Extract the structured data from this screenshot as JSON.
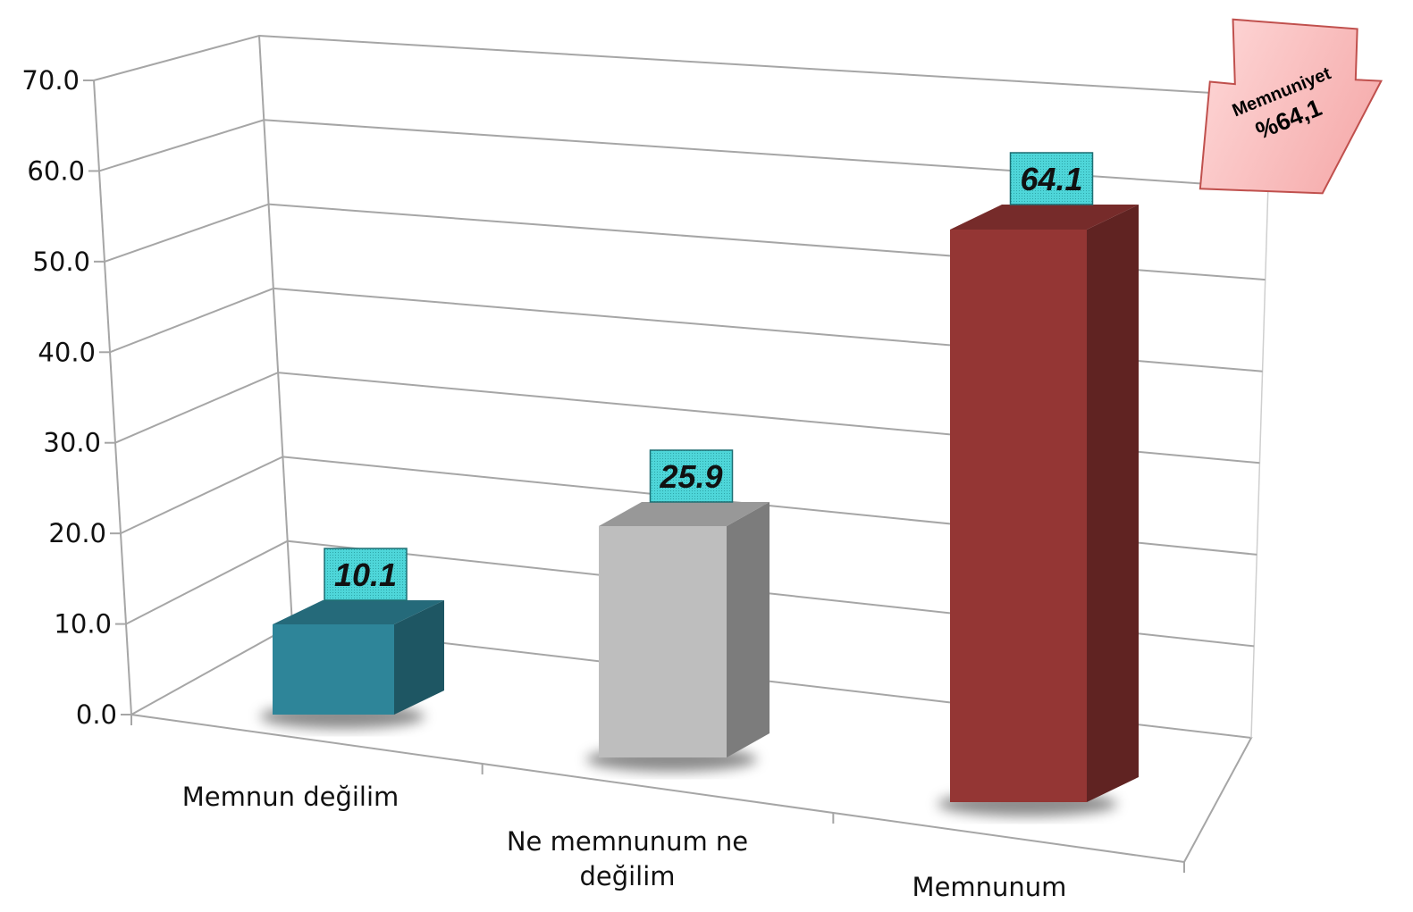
{
  "chart_data": {
    "type": "bar",
    "categories": [
      "Memnun değilim",
      "Ne memnunum ne değilim",
      "Memnunum"
    ],
    "category_lines": [
      [
        "Memnun değilim"
      ],
      [
        "Ne memnunum ne",
        "değilim"
      ],
      [
        "Memnunum"
      ]
    ],
    "values": [
      10.1,
      25.9,
      64.1
    ],
    "value_labels": [
      "10.1",
      "25.9",
      "64.1"
    ],
    "bar_colors": [
      "#2e8599",
      "#bebebe",
      "#943634"
    ],
    "label_box_color": "#4ed6d9",
    "yticks": [
      "0.0",
      "10.0",
      "20.0",
      "30.0",
      "40.0",
      "50.0",
      "60.0",
      "70.0"
    ],
    "ylim": [
      0,
      70
    ],
    "grid": true,
    "style": "3d-column",
    "title": "",
    "xlabel": "",
    "ylabel": ""
  },
  "callout": {
    "line1": "Memnuniyet",
    "line2": "%64,1",
    "fill": "#f8b4b4",
    "stroke": "#c0504d"
  }
}
